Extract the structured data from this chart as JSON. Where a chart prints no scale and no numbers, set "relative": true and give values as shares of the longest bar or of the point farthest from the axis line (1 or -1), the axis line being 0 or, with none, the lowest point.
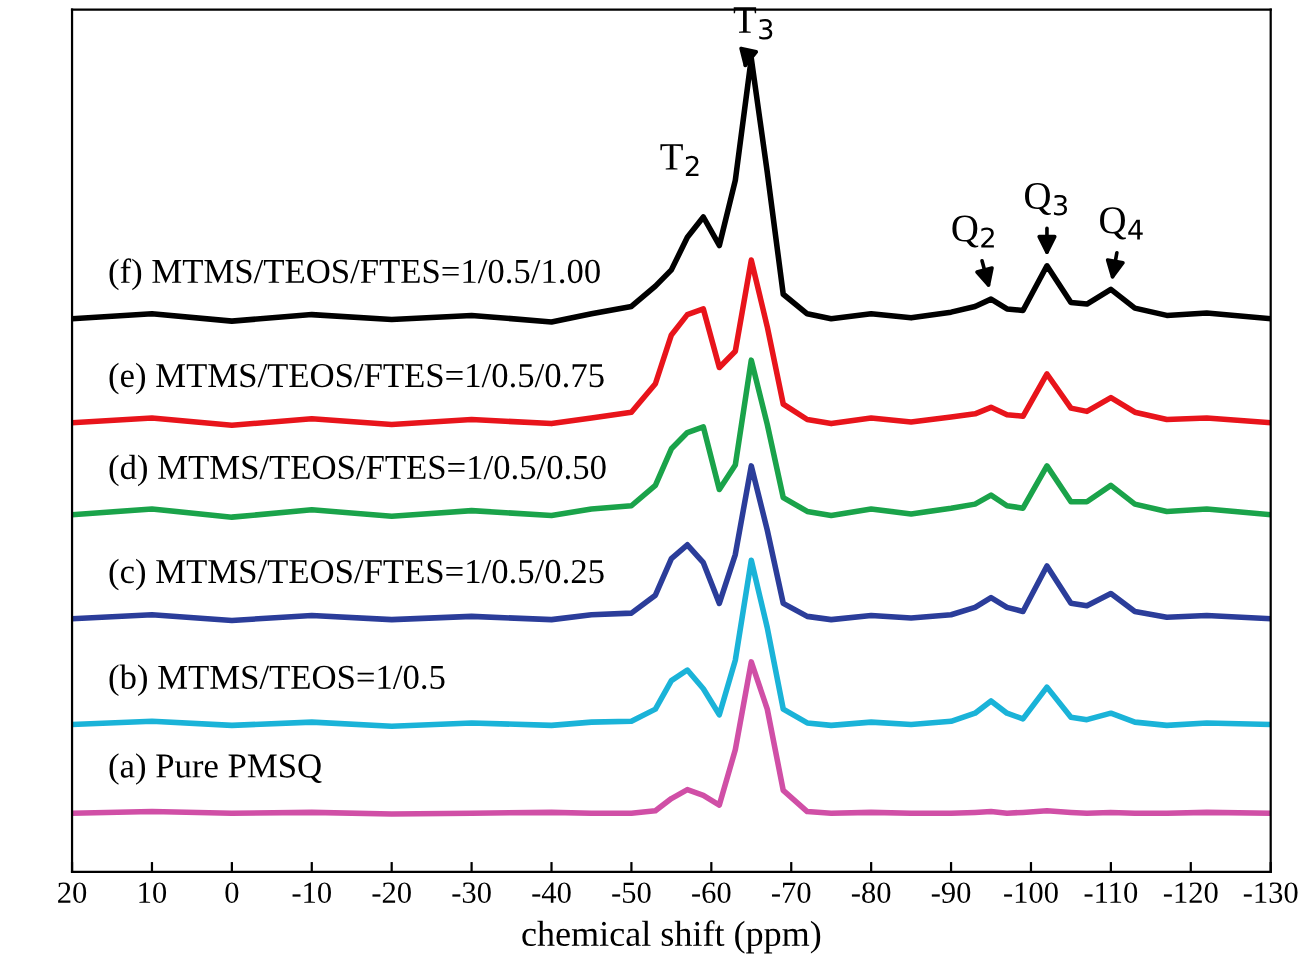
{
  "chart_data": {
    "type": "line",
    "relative": true,
    "xlabel": "chemical shift (ppm)",
    "xlim": [
      20,
      -130
    ],
    "xticks": [
      20,
      10,
      0,
      -10,
      -20,
      -30,
      -40,
      -50,
      -60,
      -70,
      -80,
      -90,
      -100,
      -110,
      -120,
      -130
    ],
    "grid": false,
    "legend": false,
    "marker": "none",
    "line_style": "solid",
    "x": [
      20,
      10,
      0,
      -10,
      -20,
      -30,
      -40,
      -45,
      -50,
      -53,
      -55,
      -57,
      -59,
      -61,
      -63,
      -65,
      -67,
      -69,
      -72,
      -75,
      -80,
      -85,
      -90,
      -93,
      -95,
      -97,
      -99,
      -102,
      -105,
      -107,
      -110,
      -113,
      -117,
      -122,
      -130
    ],
    "series": [
      {
        "name": "(a) Pure PMSQ",
        "color": "#d04fa6",
        "values": [
          0.072,
          0.074,
          0.072,
          0.073,
          0.071,
          0.072,
          0.073,
          0.072,
          0.072,
          0.075,
          0.09,
          0.101,
          0.094,
          0.082,
          0.15,
          0.258,
          0.2,
          0.1,
          0.074,
          0.072,
          0.073,
          0.072,
          0.072,
          0.073,
          0.074,
          0.072,
          0.073,
          0.075,
          0.073,
          0.072,
          0.073,
          0.072,
          0.072,
          0.073,
          0.072
        ]
      },
      {
        "name": "(b) MTMS/TEOS=1/0.5",
        "color": "#1ab3d8",
        "values": [
          0.181,
          0.185,
          0.18,
          0.184,
          0.179,
          0.183,
          0.18,
          0.184,
          0.185,
          0.2,
          0.235,
          0.248,
          0.225,
          0.193,
          0.26,
          0.383,
          0.3,
          0.2,
          0.183,
          0.18,
          0.184,
          0.181,
          0.185,
          0.195,
          0.21,
          0.195,
          0.188,
          0.227,
          0.19,
          0.187,
          0.195,
          0.184,
          0.18,
          0.183,
          0.181
        ]
      },
      {
        "name": "(c) MTMS/TEOS/FTES=1/0.5/0.25",
        "color": "#2b3d9a",
        "values": [
          0.311,
          0.316,
          0.309,
          0.315,
          0.31,
          0.314,
          0.31,
          0.316,
          0.318,
          0.34,
          0.385,
          0.402,
          0.38,
          0.33,
          0.39,
          0.499,
          0.42,
          0.33,
          0.314,
          0.31,
          0.315,
          0.312,
          0.316,
          0.325,
          0.337,
          0.325,
          0.32,
          0.376,
          0.33,
          0.327,
          0.342,
          0.32,
          0.313,
          0.315,
          0.311
        ]
      },
      {
        "name": "(d) MTMS/TEOS/FTES=1/0.5/0.50",
        "color": "#1aa34a",
        "values": [
          0.439,
          0.446,
          0.436,
          0.445,
          0.437,
          0.444,
          0.438,
          0.446,
          0.45,
          0.475,
          0.52,
          0.54,
          0.547,
          0.47,
          0.5,
          0.629,
          0.55,
          0.46,
          0.443,
          0.438,
          0.446,
          0.44,
          0.447,
          0.452,
          0.463,
          0.45,
          0.447,
          0.499,
          0.455,
          0.455,
          0.475,
          0.452,
          0.443,
          0.446,
          0.439
        ]
      },
      {
        "name": "(e) MTMS/TEOS/FTES=1/0.5/0.75",
        "color": "#e8141b",
        "values": [
          0.552,
          0.558,
          0.549,
          0.557,
          0.55,
          0.556,
          0.551,
          0.558,
          0.565,
          0.6,
          0.66,
          0.685,
          0.692,
          0.62,
          0.64,
          0.752,
          0.67,
          0.575,
          0.556,
          0.551,
          0.558,
          0.553,
          0.559,
          0.563,
          0.571,
          0.562,
          0.56,
          0.612,
          0.57,
          0.566,
          0.583,
          0.565,
          0.556,
          0.558,
          0.552
        ]
      },
      {
        "name": "(f) MTMS/TEOS/FTES=1/0.5/1.00",
        "color": "#000000",
        "values": [
          0.68,
          0.686,
          0.677,
          0.685,
          0.679,
          0.684,
          0.676,
          0.686,
          0.695,
          0.72,
          0.74,
          0.78,
          0.805,
          0.77,
          0.85,
          1.0,
          0.86,
          0.71,
          0.686,
          0.68,
          0.686,
          0.681,
          0.688,
          0.695,
          0.704,
          0.692,
          0.69,
          0.745,
          0.7,
          0.698,
          0.716,
          0.693,
          0.684,
          0.687,
          0.68
        ]
      }
    ],
    "annotations": [
      {
        "text": "T$_{2}$",
        "x": -59,
        "y": 0.805
      },
      {
        "text": "T$_{3}$",
        "x": -64,
        "y": 0.98
      },
      {
        "text": "Q$_{2}$",
        "x": -95,
        "y": 0.71
      },
      {
        "text": "Q$_{3}$",
        "x": -102,
        "y": 0.75
      },
      {
        "text": "Q$_{4}$",
        "x": -110,
        "y": 0.72
      }
    ]
  }
}
